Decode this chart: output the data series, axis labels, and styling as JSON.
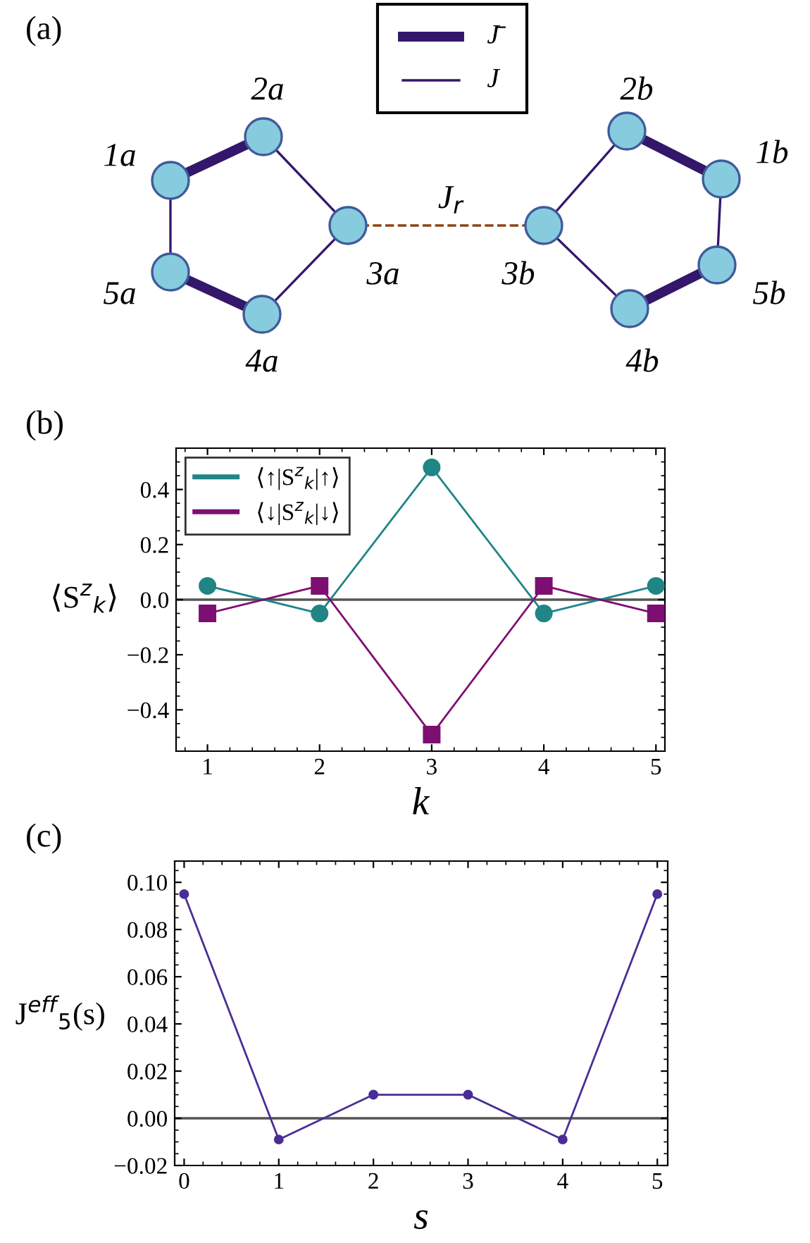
{
  "chart_data": [
    {
      "type": "other",
      "title": "(a)",
      "annotations": [
        "1a",
        "2a",
        "3a",
        "4a",
        "5a",
        "1b",
        "2b",
        "3b",
        "4b",
        "5b",
        "J$_{r}$",
        "J̄",
        "J"
      ]
    },
    {
      "type": "line",
      "title": "(b)",
      "xlabel": "k",
      "ylabel": "⟨S$^{z}$$_{k}$⟩",
      "x": [
        1,
        2,
        3,
        4,
        5
      ],
      "xlim": [
        0.72,
        5.08
      ],
      "xticks": [
        1,
        2,
        3,
        4,
        5
      ],
      "ylim": [
        -0.55,
        0.55
      ],
      "yticks": [
        {
          "value": -0.4,
          "label": "−0.4"
        },
        {
          "value": -0.2,
          "label": "−0.2"
        },
        {
          "value": 0,
          "label": "0.0"
        },
        0.2,
        0.4
      ],
      "legend": "top left",
      "ref_lines": [
        {
          "axis": "y",
          "value": 0,
          "color": "#555555"
        }
      ],
      "series": [
        {
          "name": "⟨↑|S$^{z}$$_{k}$|↑⟩",
          "color": "#1f8585",
          "marker": "circle",
          "values": [
            0.05,
            -0.05,
            0.48,
            -0.05,
            0.05
          ]
        },
        {
          "name": "⟨↓|S$^{z}$$_{k}$|↓⟩",
          "color": "#7d0f72",
          "marker": "square",
          "values": [
            -0.05,
            0.05,
            -0.49,
            0.05,
            -0.05
          ]
        }
      ]
    },
    {
      "type": "line",
      "title": "(c)",
      "xlabel": "s",
      "ylabel": "J$^{eff}$$_{5}$(s)",
      "x": [
        0,
        1,
        2,
        3,
        4,
        5
      ],
      "xlim": [
        -0.1,
        5.11
      ],
      "xticks": [
        0,
        1,
        2,
        3,
        4,
        5
      ],
      "ylim": [
        -0.02,
        0.109
      ],
      "yticks": [
        {
          "value": -0.02,
          "label": "−0.02"
        },
        {
          "value": 0,
          "label": "0.00"
        },
        {
          "value": 0.02,
          "label": "0.02"
        },
        {
          "value": 0.04,
          "label": "0.04"
        },
        {
          "value": 0.06,
          "label": "0.06"
        },
        {
          "value": 0.08,
          "label": "0.08"
        },
        {
          "value": 0.1,
          "label": "0.10"
        }
      ],
      "ref_lines": [
        {
          "axis": "y",
          "value": 0,
          "color": "#555555"
        }
      ],
      "series": [
        {
          "color": "#4a2d96",
          "marker": "circle",
          "values": [
            0.095,
            -0.009,
            0.01,
            0.01,
            -0.009,
            0.095
          ]
        }
      ]
    }
  ]
}
